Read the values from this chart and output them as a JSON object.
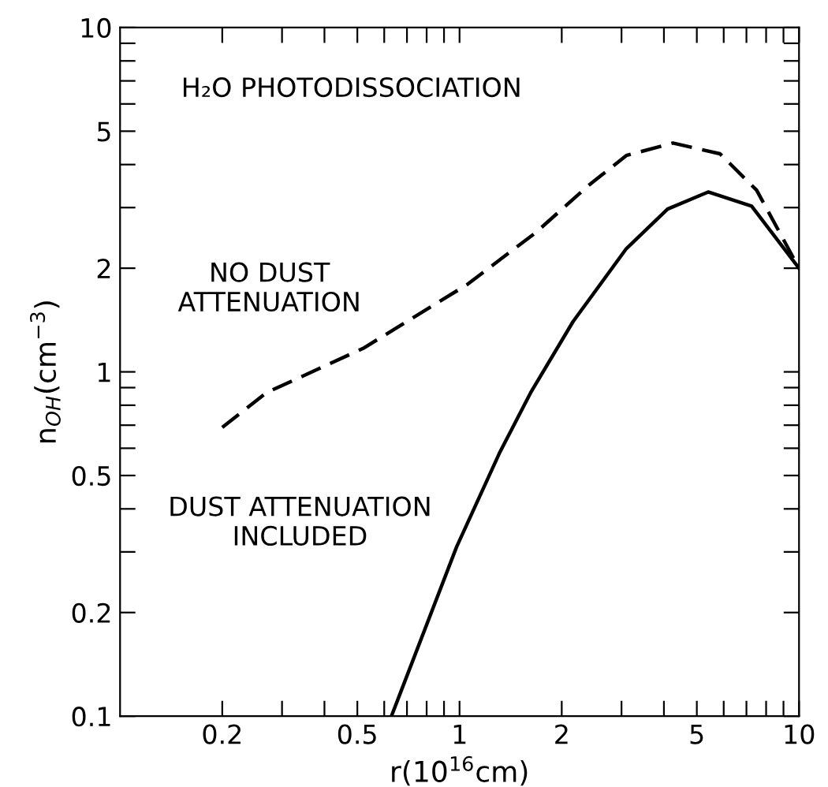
{
  "chart_data": {
    "type": "line",
    "xlabel": "r(10$^{16}$cm)",
    "ylabel": "n$_{OH}$(cm$^{−3}$)",
    "log": "xy",
    "annotations": [
      "H₂O PHOTODISSOCIATION"
    ],
    "xlim": [
      0.1,
      10
    ],
    "ylim": [
      0.1,
      10
    ],
    "xticks": [
      0.2,
      {
        "value": 0.3,
        "label": null
      },
      {
        "value": 0.4,
        "label": null
      },
      0.5,
      {
        "value": 0.6,
        "label": null
      },
      {
        "value": 0.7,
        "label": null
      },
      {
        "value": 0.8,
        "label": null
      },
      {
        "value": 0.9,
        "label": null
      },
      1,
      2,
      {
        "value": 3,
        "label": null
      },
      {
        "value": 4,
        "label": null
      },
      5,
      {
        "value": 6,
        "label": null
      },
      {
        "value": 7,
        "label": null
      },
      {
        "value": 8,
        "label": null
      },
      {
        "value": 9,
        "label": null
      },
      10
    ],
    "yticks": [
      0.1,
      0.2,
      {
        "value": 0.3,
        "label": null
      },
      {
        "value": 0.4,
        "label": null
      },
      0.5,
      {
        "value": 0.6,
        "label": null
      },
      {
        "value": 0.7,
        "label": null
      },
      {
        "value": 0.8,
        "label": null
      },
      {
        "value": 0.9,
        "label": null
      },
      1,
      2,
      {
        "value": 3,
        "label": null
      },
      {
        "value": 4,
        "label": null
      },
      5,
      {
        "value": 6,
        "label": null
      },
      {
        "value": 7,
        "label": null
      },
      {
        "value": 8,
        "label": null
      },
      {
        "value": 9,
        "label": null
      },
      10
    ],
    "grid": false,
    "legend": false,
    "series": [
      {
        "name": "NO DUST ATTENUATION",
        "color": "#000000",
        "line_style": "dashed",
        "x": [
          0.2,
          0.27,
          0.52,
          1.05,
          1.67,
          2.4,
          3.1,
          4.25,
          5.85,
          7.5,
          10
        ],
        "values": [
          0.69,
          0.87,
          1.17,
          1.79,
          2.53,
          3.48,
          4.25,
          4.62,
          4.3,
          3.37,
          2.0
        ]
      },
      {
        "name": "DUST ATTENUATION INCLUDED",
        "color": "#000000",
        "line_style": "solid",
        "x": [
          0.63,
          0.98,
          1.31,
          1.62,
          2.16,
          3.1,
          4.1,
          5.4,
          7.25,
          10
        ],
        "values": [
          0.1,
          0.31,
          0.58,
          0.87,
          1.4,
          2.28,
          2.97,
          3.33,
          3.03,
          2.0
        ]
      }
    ]
  }
}
